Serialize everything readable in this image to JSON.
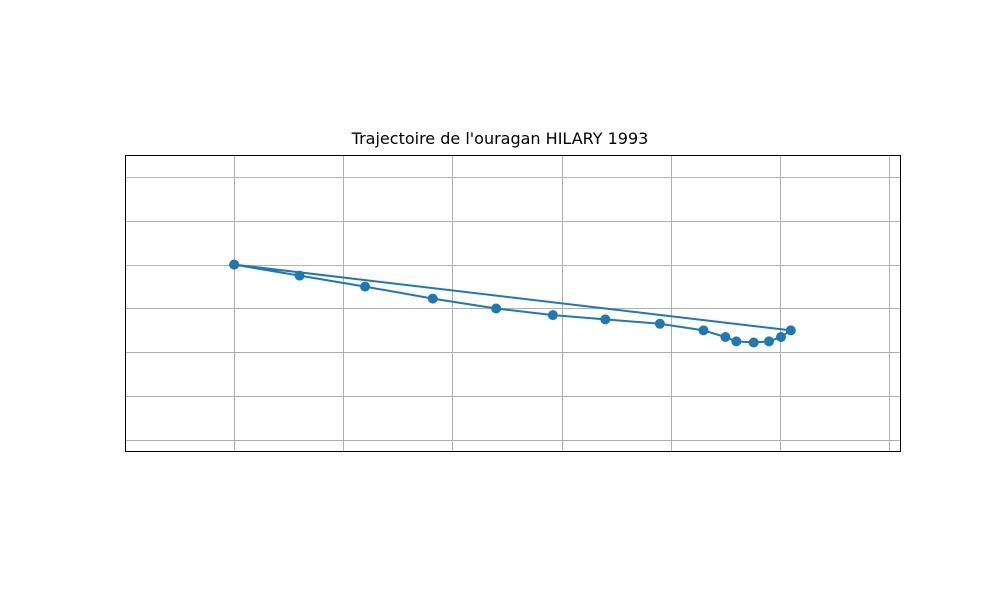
{
  "chart_data": {
    "type": "line",
    "title": "Trajectoire de l'ouragan HILARY 1993",
    "xlabel": "",
    "ylabel": "",
    "grid": true,
    "legend": "none",
    "color": "#1f77b4",
    "xlim": [
      -10.0,
      25.5
    ],
    "ylim": [
      -8.5,
      5.0
    ],
    "series": [
      {
        "points": [
          [
            -5.0,
            0.0
          ],
          [
            -2.0,
            -0.5
          ],
          [
            1.0,
            -1.0
          ],
          [
            4.1,
            -1.55
          ],
          [
            7.0,
            -2.0
          ],
          [
            9.6,
            -2.3
          ],
          [
            12.0,
            -2.5
          ],
          [
            14.5,
            -2.7
          ],
          [
            16.5,
            -3.0
          ],
          [
            17.5,
            -3.3
          ],
          [
            18.0,
            -3.5
          ],
          [
            18.8,
            -3.55
          ],
          [
            19.5,
            -3.5
          ],
          [
            20.05,
            -3.3
          ],
          [
            20.5,
            -3.0
          ],
          [
            -5.0,
            0.0
          ]
        ]
      }
    ]
  }
}
